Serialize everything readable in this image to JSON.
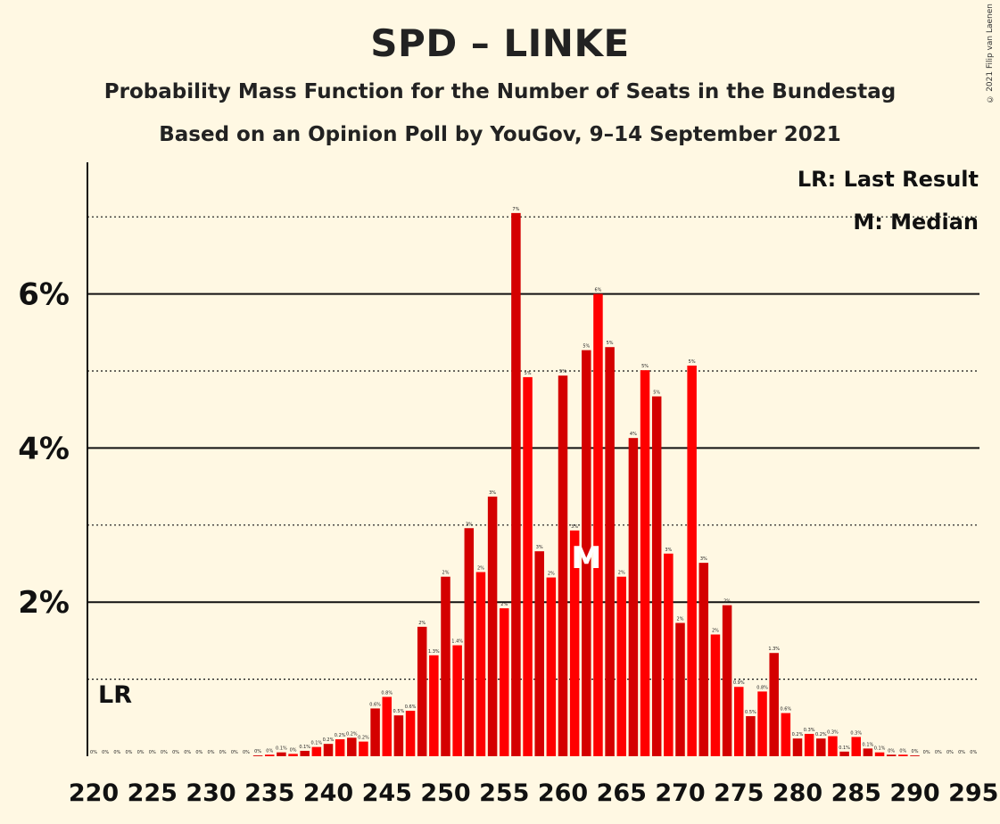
{
  "header": {
    "title": "SPD – LINKE",
    "subtitle": "Probability Mass Function for the Number of Seats in the Bundestag",
    "subtitle2": "Based on an Opinion Poll by YouGov, 9–14 September 2021",
    "copyright": "© 2021 Filip van Laenen"
  },
  "legend": {
    "last_result": "LR: Last Result",
    "median": "M: Median"
  },
  "markers": {
    "last_result_label": "LR",
    "last_result_seat": 220,
    "median_label": "M",
    "median_seat": 262
  },
  "colors": {
    "background": "#fff8e3",
    "bar_dark": "#d40000",
    "bar_light": "#ff0000",
    "text": "#111111"
  },
  "chart_data": {
    "type": "bar",
    "xlabel": "",
    "ylabel": "",
    "xlim": [
      220,
      295
    ],
    "ylim": [
      0,
      7.7
    ],
    "ytick_values": [
      2,
      4,
      6
    ],
    "ytick_labels": [
      "2%",
      "4%",
      "6%"
    ],
    "xtick_values": [
      220,
      225,
      230,
      235,
      240,
      245,
      250,
      255,
      260,
      265,
      270,
      275,
      280,
      285,
      290,
      295
    ],
    "grid": "major solid lines at 2, 4, 6; dotted lines at 1, 3, 5, 7",
    "legend_position": "top-right",
    "x": [
      220,
      221,
      222,
      223,
      224,
      225,
      226,
      227,
      228,
      229,
      230,
      231,
      232,
      233,
      234,
      235,
      236,
      237,
      238,
      239,
      240,
      241,
      242,
      243,
      244,
      245,
      246,
      247,
      248,
      249,
      250,
      251,
      252,
      253,
      254,
      255,
      256,
      257,
      258,
      259,
      260,
      261,
      262,
      263,
      264,
      265,
      266,
      267,
      268,
      269,
      270,
      271,
      272,
      273,
      274,
      275,
      276,
      277,
      278,
      279,
      280,
      281,
      282,
      283,
      284,
      285,
      286,
      287,
      288,
      289,
      290,
      291,
      292,
      293,
      294,
      295
    ],
    "values": [
      0,
      0,
      0,
      0,
      0,
      0,
      0,
      0,
      0,
      0,
      0,
      0,
      0,
      0,
      0.01,
      0.02,
      0.05,
      0.03,
      0.07,
      0.12,
      0.16,
      0.22,
      0.24,
      0.19,
      0.62,
      0.77,
      0.53,
      0.59,
      1.68,
      1.31,
      2.33,
      1.44,
      2.96,
      2.39,
      3.37,
      1.92,
      7.05,
      4.92,
      2.66,
      2.32,
      4.94,
      2.93,
      5.27,
      6.0,
      5.31,
      2.33,
      4.13,
      5.01,
      4.67,
      2.63,
      1.73,
      5.07,
      2.51,
      1.58,
      1.96,
      0.9,
      0.52,
      0.84,
      1.34,
      0.56,
      0.23,
      0.29,
      0.23,
      0.26,
      0.06,
      0.25,
      0.1,
      0.05,
      0.02,
      0.02,
      0.01,
      0,
      0,
      0,
      0,
      0
    ],
    "data_labels": [
      "0%",
      "0%",
      "0%",
      "0%",
      "0%",
      "0%",
      "0%",
      "0%",
      "0%",
      "0%",
      "0%",
      "0%",
      "0%",
      "0%",
      "0%",
      "0%",
      "0.1%",
      "0%",
      "0.1%",
      "0.1%",
      "0.2%",
      "0.2%",
      "0.2%",
      "0.2%",
      "0.6%",
      "0.8%",
      "0.5%",
      "0.6%",
      "2%",
      "1.3%",
      "2%",
      "1.4%",
      "3%",
      "2%",
      "3%",
      "2%",
      "7%",
      "5%",
      "3%",
      "2%",
      "5%",
      "3%",
      "5%",
      "6%",
      "5%",
      "2%",
      "4%",
      "5%",
      "5%",
      "3%",
      "2%",
      "5%",
      "3%",
      "2%",
      "2%",
      "0.9%",
      "0.5%",
      "0.8%",
      "1.3%",
      "0.6%",
      "0.2%",
      "0.3%",
      "0.2%",
      "0.3%",
      "0.1%",
      "0.3%",
      "0.1%",
      "0.1%",
      "0%",
      "0%",
      "0%",
      "0%",
      "0%",
      "0%",
      "0%",
      "0%"
    ]
  }
}
